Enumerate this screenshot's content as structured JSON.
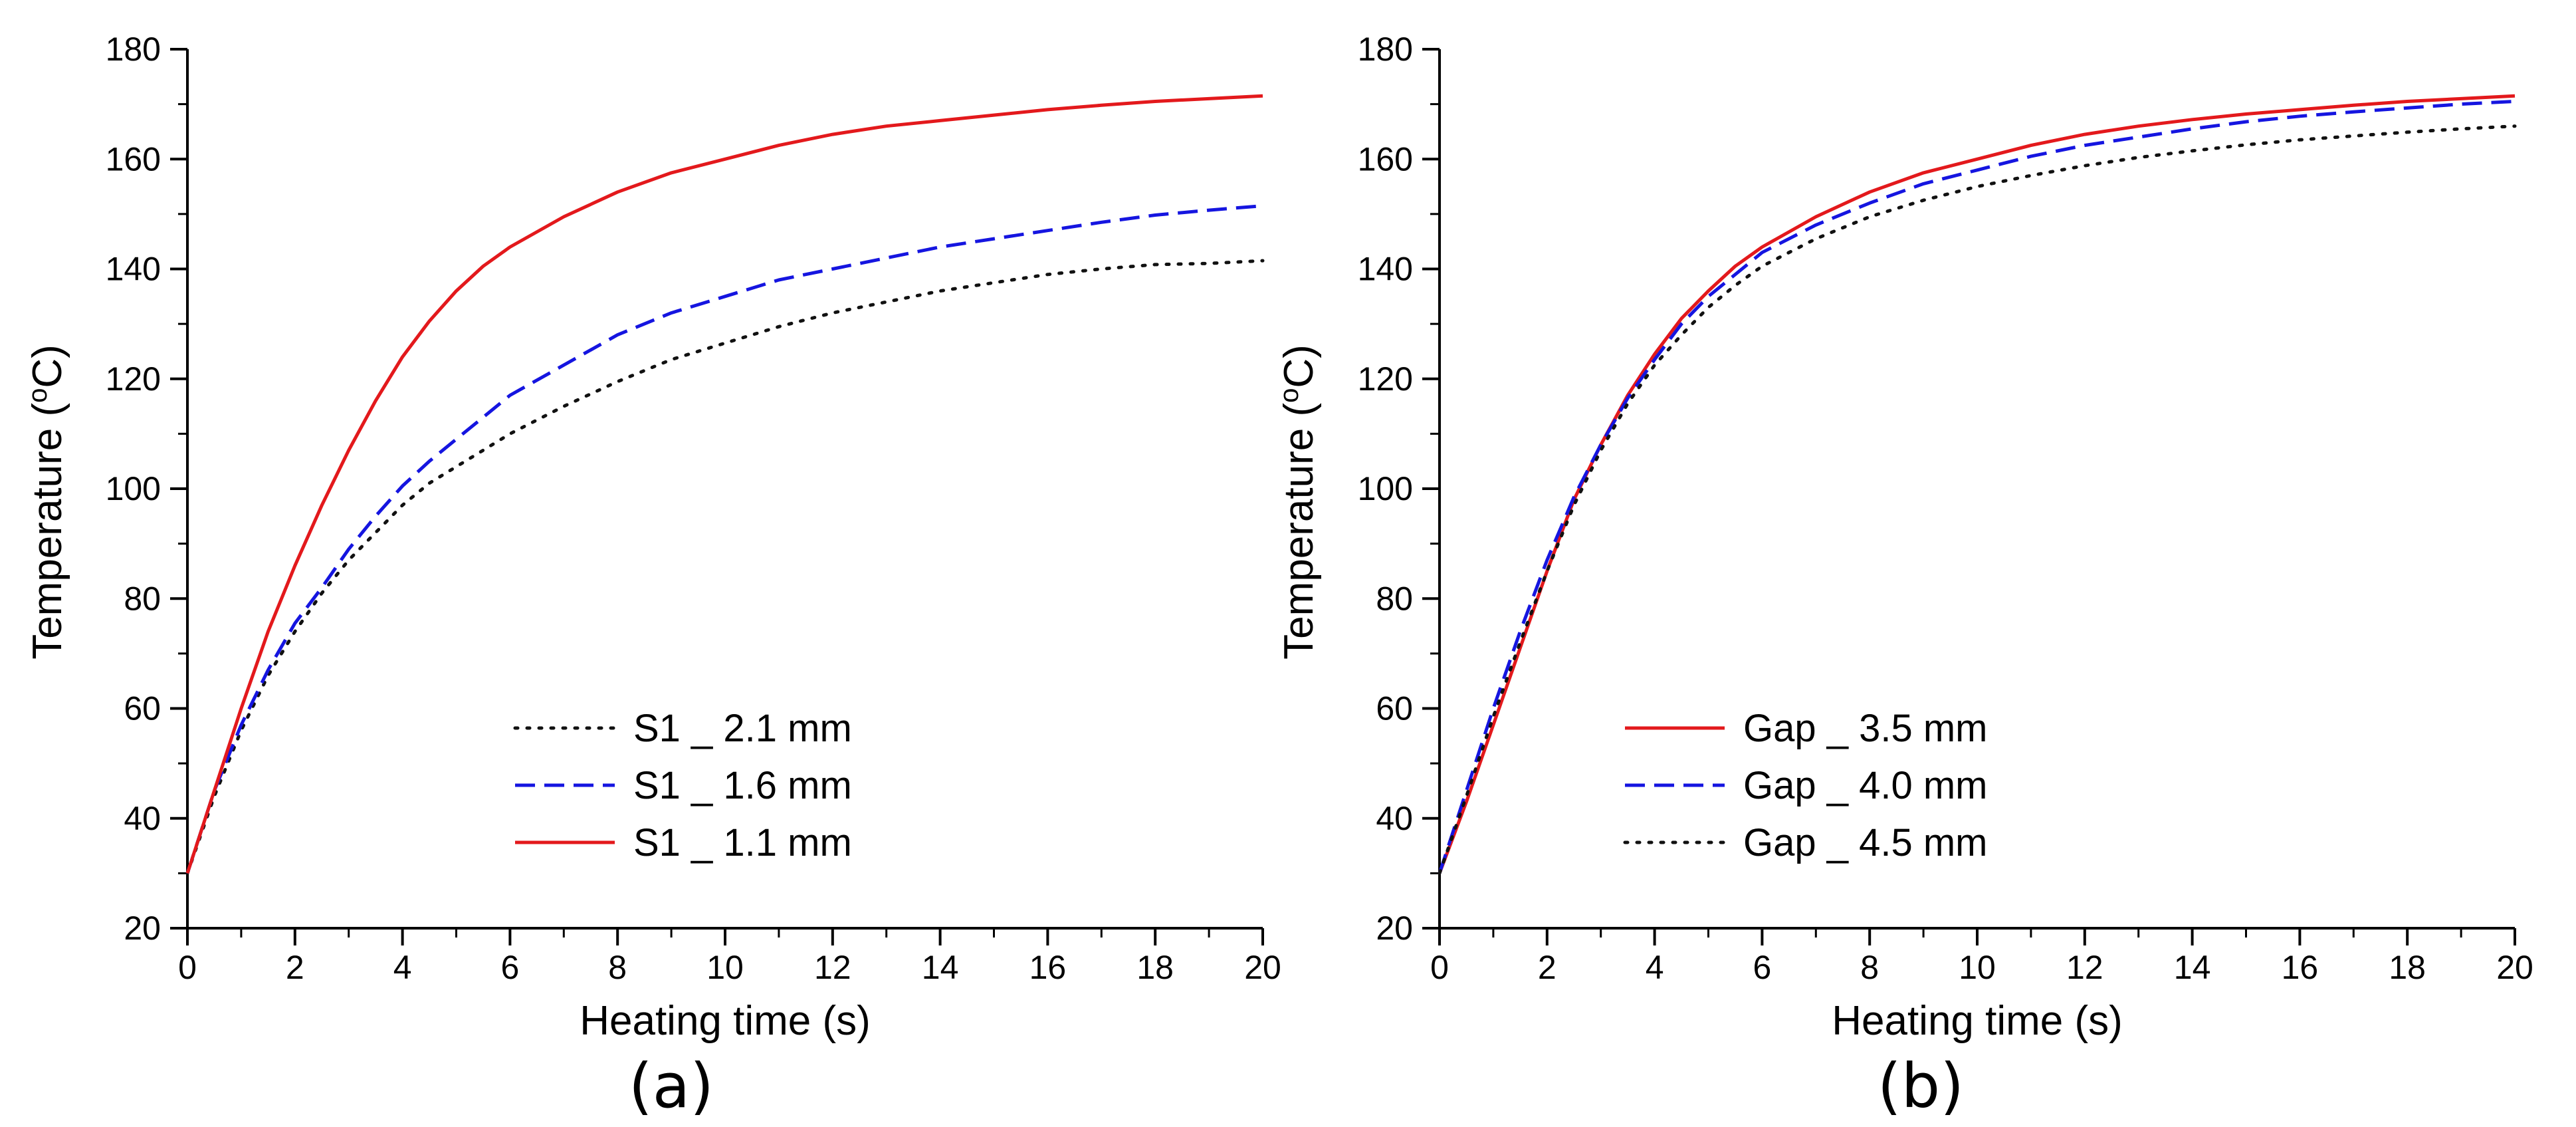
{
  "colors": {
    "red": "#e3191c",
    "blue": "#1515e0",
    "black": "#111111",
    "axis": "#000000"
  },
  "chart_data": [
    {
      "type": "line",
      "panel_label": "(a)",
      "xlabel": "Heating time (s)",
      "ylabel_main": "Temperature (",
      "ylabel_sup": "o",
      "ylabel_tail": "C)",
      "xlim": [
        0,
        20
      ],
      "ylim": [
        20,
        180
      ],
      "xticks": [
        0,
        2,
        4,
        6,
        8,
        10,
        12,
        14,
        16,
        18,
        20
      ],
      "yticks": [
        20,
        40,
        60,
        80,
        100,
        120,
        140,
        160,
        180
      ],
      "x": [
        0,
        0.5,
        1,
        1.5,
        2,
        2.5,
        3,
        3.5,
        4,
        4.5,
        5,
        5.5,
        6,
        7,
        8,
        9,
        10,
        11,
        12,
        13,
        14,
        15,
        16,
        17,
        18,
        19,
        20
      ],
      "legend_position": "lower-center",
      "series": [
        {
          "name": "S1 _ 2.1 mm",
          "style": "dotted",
          "color": "#111111",
          "values": [
            30,
            44,
            56,
            66,
            74,
            81,
            87,
            92,
            97,
            101,
            104,
            107,
            110,
            115,
            119.5,
            123.5,
            126.5,
            129.5,
            132,
            134,
            136,
            137.5,
            139,
            140,
            140.8,
            141,
            141.5
          ]
        },
        {
          "name": "S1 _ 1.6 mm",
          "style": "dashed",
          "color": "#1515e0",
          "values": [
            30,
            45,
            57,
            67,
            75.5,
            82,
            89,
            95,
            100.5,
            105,
            109,
            113,
            117,
            122.5,
            128,
            132,
            135,
            138,
            140,
            142,
            144,
            145.5,
            147,
            148.5,
            149.8,
            150.7,
            151.5
          ]
        },
        {
          "name": "S1 _ 1.1 mm",
          "style": "solid",
          "color": "#e3191c",
          "values": [
            30,
            45,
            60,
            74,
            86,
            97,
            107,
            116,
            124,
            130.5,
            136,
            140.5,
            144,
            149.5,
            154,
            157.5,
            160,
            162.5,
            164.5,
            166,
            167,
            168,
            169,
            169.8,
            170.5,
            171,
            171.5
          ]
        }
      ]
    },
    {
      "type": "line",
      "panel_label": "(b)",
      "xlabel": "Heating time (s)",
      "ylabel_main": "Temperature (",
      "ylabel_sup": "o",
      "ylabel_tail": "C)",
      "xlim": [
        0,
        20
      ],
      "ylim": [
        20,
        180
      ],
      "xticks": [
        0,
        2,
        4,
        6,
        8,
        10,
        12,
        14,
        16,
        18,
        20
      ],
      "yticks": [
        20,
        40,
        60,
        80,
        100,
        120,
        140,
        160,
        180
      ],
      "x": [
        0,
        0.5,
        1,
        1.5,
        2,
        2.5,
        3,
        3.5,
        4,
        4.5,
        5,
        5.5,
        6,
        7,
        8,
        9,
        10,
        11,
        12,
        13,
        14,
        15,
        16,
        17,
        18,
        19,
        20
      ],
      "legend_position": "lower-center",
      "series": [
        {
          "name": "Gap _ 3.5 mm",
          "style": "solid",
          "color": "#e3191c",
          "values": [
            30,
            43,
            57,
            71,
            85,
            98,
            108,
            117,
            124.5,
            131,
            136,
            140.5,
            144,
            149.5,
            154,
            157.5,
            160,
            162.5,
            164.5,
            166,
            167.2,
            168.2,
            169,
            169.8,
            170.5,
            171,
            171.5
          ]
        },
        {
          "name": "Gap _ 4.0 mm",
          "style": "dashed",
          "color": "#1515e0",
          "values": [
            30,
            45,
            60,
            74,
            87,
            98.5,
            108,
            116.5,
            123.5,
            130,
            135,
            139,
            143,
            148,
            152,
            155.5,
            158,
            160.5,
            162.5,
            164,
            165.5,
            166.8,
            167.8,
            168.6,
            169.3,
            170,
            170.5
          ]
        },
        {
          "name": "Gap _ 4.5 mm",
          "style": "dotted",
          "color": "#111111",
          "values": [
            30,
            44,
            58.5,
            72,
            85,
            97,
            107,
            115.5,
            122.5,
            128,
            133,
            137,
            140.5,
            145.5,
            149.5,
            152.5,
            155,
            157,
            158.8,
            160.3,
            161.5,
            162.6,
            163.5,
            164.2,
            164.9,
            165.5,
            166
          ]
        }
      ]
    }
  ]
}
